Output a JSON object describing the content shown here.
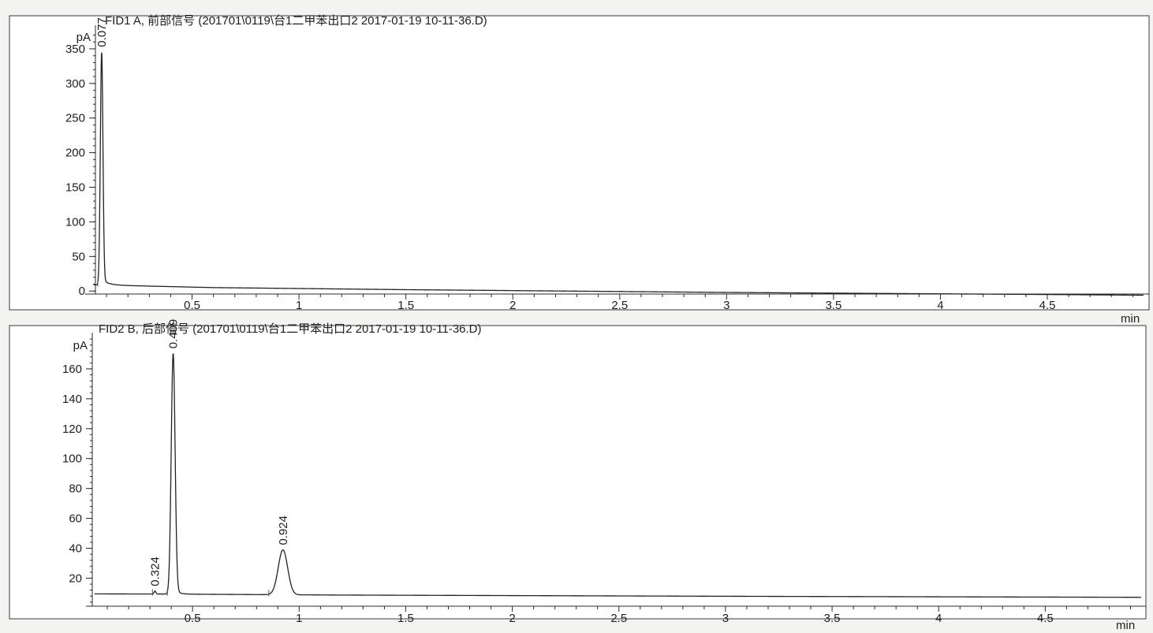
{
  "chart_data": [
    {
      "type": "line",
      "title": "FID1 A, 前部信号 (201701\\0119\\台1二甲苯出口2 2017-01-19 10-11-36.D)",
      "ylabel": "pA",
      "xlabel": "min",
      "xlim": [
        0,
        4.95
      ],
      "ylim": [
        -10,
        375
      ],
      "x_ticks": [
        0.5,
        1,
        1.5,
        2,
        2.5,
        3,
        3.5,
        4,
        4.5
      ],
      "x_tick_labels": [
        "0.5",
        "1",
        "1.5",
        "2",
        "2.5",
        "3",
        "3.5",
        "4",
        "4.5"
      ],
      "y_ticks": [
        0,
        50,
        100,
        150,
        200,
        250,
        300,
        350
      ],
      "y_tick_labels": [
        "0",
        "50",
        "100",
        "150",
        "200",
        "250",
        "300",
        "350"
      ],
      "baseline": [
        [
          0.0,
          8
        ],
        [
          0.04,
          9
        ],
        [
          0.6,
          5
        ],
        [
          1.5,
          2
        ],
        [
          3.0,
          -2
        ],
        [
          4.5,
          -5
        ],
        [
          4.95,
          -6
        ]
      ],
      "peaks": [
        {
          "rt": 0.077,
          "label": "0.077",
          "height": 337,
          "width": 0.006,
          "tail": 0.03
        }
      ],
      "grid": false,
      "legend": "none"
    },
    {
      "type": "line",
      "title": "FID2 B, 后部信号 (201701\\0119\\台1二甲苯出口2 2017-01-19 10-11-36.D)",
      "ylabel": "pA",
      "xlabel": "min",
      "xlim": [
        0,
        4.95
      ],
      "ylim": [
        6,
        180
      ],
      "x_ticks": [
        0.5,
        1,
        1.5,
        2,
        2.5,
        3,
        3.5,
        4,
        4.5
      ],
      "x_tick_labels": [
        "0.5",
        "1",
        "1.5",
        "2",
        "2.5",
        "3",
        "3.5",
        "4",
        "4.5"
      ],
      "y_ticks": [
        20,
        40,
        60,
        80,
        100,
        120,
        140,
        160
      ],
      "y_tick_labels": [
        "20",
        "40",
        "60",
        "80",
        "100",
        "120",
        "140",
        "160"
      ],
      "baseline": [
        [
          0.0,
          9.5
        ],
        [
          0.35,
          9.4
        ],
        [
          1.2,
          8.7
        ],
        [
          3.0,
          7.9
        ],
        [
          4.95,
          7.2
        ]
      ],
      "peaks": [
        {
          "rt": 0.324,
          "label": "0.324",
          "height": 2,
          "width": 0.004,
          "tail": 0.0
        },
        {
          "rt": 0.409,
          "label": "0.409",
          "height": 161,
          "width": 0.009,
          "tail": 0.02
        },
        {
          "rt": 0.924,
          "label": "0.924",
          "height": 30,
          "width": 0.022,
          "tail": 0.01
        }
      ],
      "grid": false,
      "legend": "none"
    }
  ]
}
